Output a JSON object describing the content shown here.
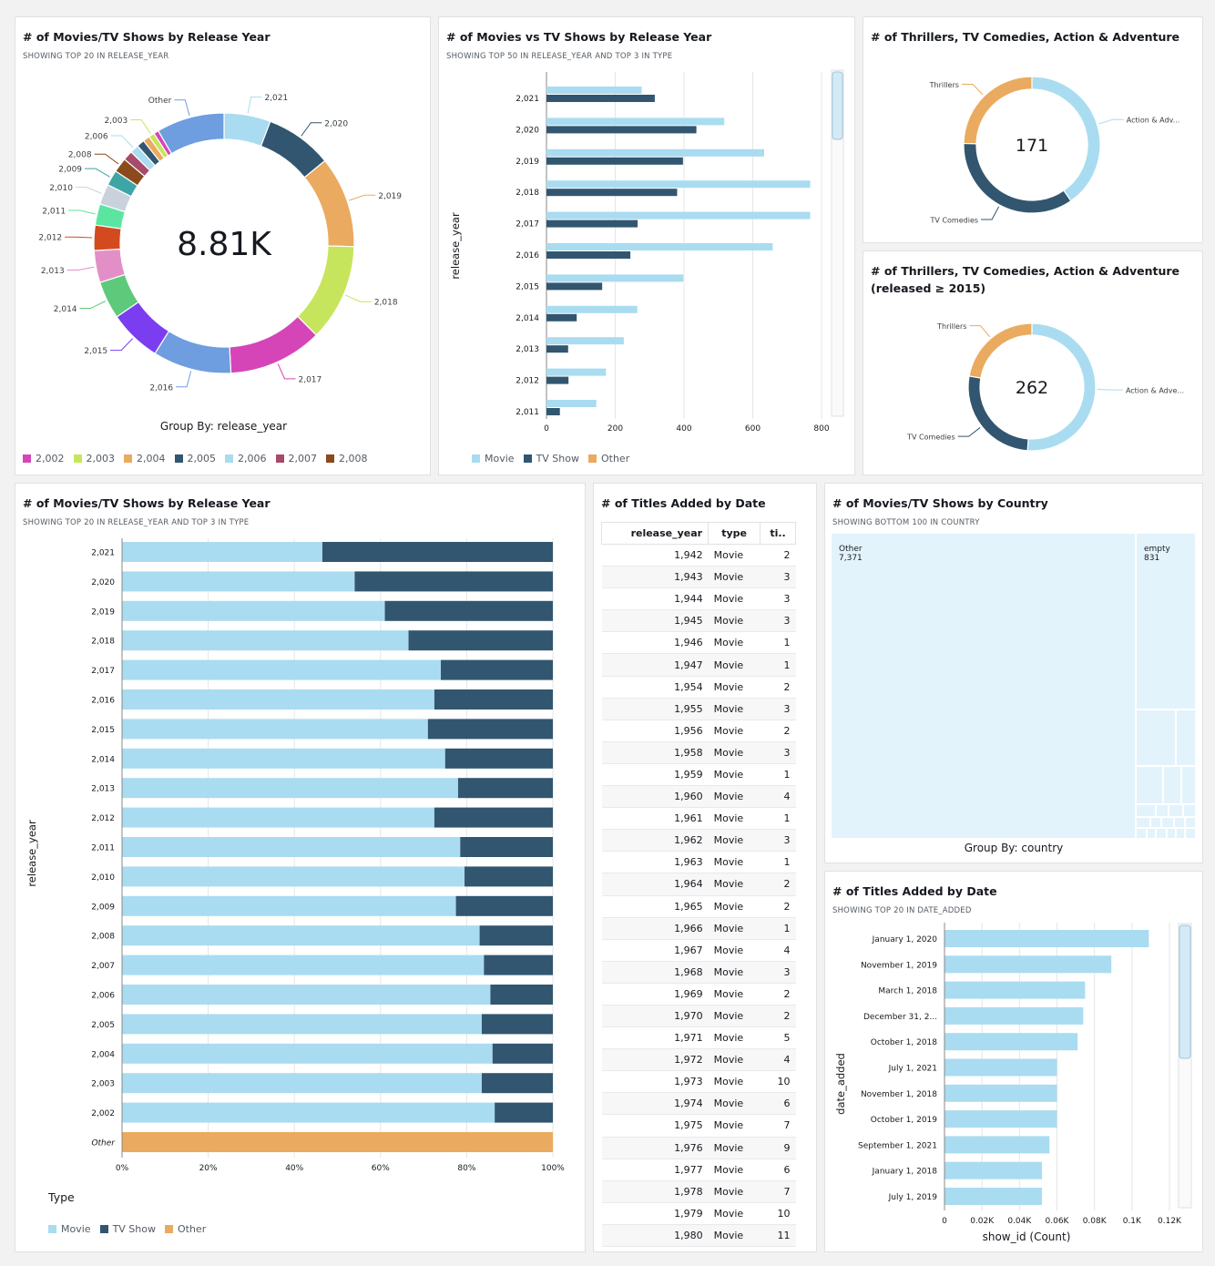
{
  "panels": {
    "p1": {
      "title": "# of Movies/TV Shows by Release Year",
      "subtitle": "SHOWING TOP 20 IN RELEASE_YEAR",
      "center": "8.81K",
      "groupby": "Group By: release_year"
    },
    "p2": {
      "title": "# of Movies vs TV Shows by Release Year",
      "subtitle": "SHOWING TOP 50 IN RELEASE_YEAR AND TOP 3 IN TYPE"
    },
    "p3": {
      "title": "# of Thrillers, TV Comedies, Action & Adventure",
      "center": "171"
    },
    "p4": {
      "title_line1": "# of Thrillers, TV Comedies, Action & Adventure",
      "title_line2": "(released ≥ 2015)",
      "center": "262"
    },
    "p5": {
      "title": "# of Movies/TV Shows by Release Year",
      "subtitle": "SHOWING TOP 20 IN RELEASE_YEAR AND TOP 3 IN TYPE",
      "legend_title": "Type"
    },
    "p6": {
      "title": "# of Titles Added by Date"
    },
    "p7": {
      "title": "# of Movies/TV Shows by Country",
      "subtitle": "SHOWING BOTTOM 100 IN COUNTRY",
      "groupby": "Group By: country"
    },
    "p8": {
      "title": "# of Titles Added by Date",
      "subtitle": "SHOWING TOP 20 IN DATE_ADDED"
    }
  },
  "colors": {
    "movie": "#a9dcf0",
    "tvshow": "#32566f",
    "other": "#eaaa5f"
  },
  "chart_data": [
    {
      "type": "pie",
      "id": "donut-release-year",
      "slices": [
        {
          "label": "2,021",
          "value": 4.8,
          "color": "#a9dcf0"
        },
        {
          "label": "2,020",
          "value": 6.9,
          "color": "#32566f"
        },
        {
          "label": "2,019",
          "value": 9.4,
          "color": "#eaaa5f"
        },
        {
          "label": "2,018",
          "value": 10.0,
          "color": "#c7e55c"
        },
        {
          "label": "2,017",
          "value": 9.7,
          "color": "#d545b8"
        },
        {
          "label": "2,016",
          "value": 8.1,
          "color": "#6e9de0"
        },
        {
          "label": "2,015",
          "value": 5.4,
          "color": "#7a3ef0"
        },
        {
          "label": "2,014",
          "value": 3.9,
          "color": "#5ec97a"
        },
        {
          "label": "2,013",
          "value": 3.3,
          "color": "#e38fc7"
        },
        {
          "label": "2,012",
          "value": 2.6,
          "color": "#d44a1f"
        },
        {
          "label": "2,011",
          "value": 2.2,
          "color": "#5ae6a1"
        },
        {
          "label": "2,010",
          "value": 2.1,
          "color": "#c9d2dc"
        },
        {
          "label": "2,009",
          "value": 1.6,
          "color": "#3ea5a6"
        },
        {
          "label": "2,008",
          "value": 1.5,
          "color": "#8a4a1c"
        },
        {
          "label": "",
          "value": 1.0,
          "color": "#a84a6a"
        },
        {
          "label": "2,006",
          "value": 0.9,
          "color": "#a9dcf0"
        },
        {
          "label": "",
          "value": 0.8,
          "color": "#32566f"
        },
        {
          "label": "",
          "value": 0.7,
          "color": "#eaaa5f"
        },
        {
          "label": "2,003",
          "value": 0.6,
          "color": "#c7e55c"
        },
        {
          "label": "",
          "value": 0.5,
          "color": "#d545b8"
        },
        {
          "label": "Other",
          "value": 7.0,
          "color": "#6e9de0"
        }
      ],
      "legend": [
        {
          "label": "2,002",
          "color": "#d545b8"
        },
        {
          "label": "2,003",
          "color": "#c7e55c"
        },
        {
          "label": "2,004",
          "color": "#eaaa5f"
        },
        {
          "label": "2,005",
          "color": "#32566f"
        },
        {
          "label": "2,006",
          "color": "#a9dcf0"
        },
        {
          "label": "2,007",
          "color": "#a84a6a"
        },
        {
          "label": "2,008",
          "color": "#8a4a1c"
        }
      ]
    },
    {
      "type": "bar",
      "id": "movies-vs-tv",
      "orientation": "horizontal",
      "categories": [
        "2,021",
        "2,020",
        "2,019",
        "2,018",
        "2,017",
        "2,016",
        "2,015",
        "2,014",
        "2,013",
        "2,012",
        "2,011"
      ],
      "series": [
        {
          "name": "Movie",
          "values": [
            277,
            517,
            633,
            767,
            767,
            658,
            398,
            264,
            225,
            173,
            145
          ]
        },
        {
          "name": "TV Show",
          "values": [
            315,
            436,
            397,
            380,
            265,
            244,
            162,
            88,
            63,
            64,
            39
          ]
        }
      ],
      "legend": [
        "Movie",
        "TV Show",
        "Other"
      ],
      "ylabel": "release_year",
      "xticks": [
        "0",
        "200",
        "400",
        "600",
        "800"
      ],
      "xlim": [
        0,
        800
      ]
    },
    {
      "type": "pie",
      "id": "genres-donut",
      "slices": [
        {
          "label": "Action & Adv...",
          "value": 121,
          "color": "#a9dcf0"
        },
        {
          "label": "TV Comedies",
          "value": 105,
          "color": "#32566f"
        },
        {
          "label": "Thrillers",
          "value": 74,
          "color": "#eaaa5f"
        }
      ]
    },
    {
      "type": "pie",
      "id": "genres-donut-2015",
      "slices": [
        {
          "label": "Action & Adve...",
          "value": 184,
          "color": "#a9dcf0"
        },
        {
          "label": "TV Comedies",
          "value": 96,
          "color": "#32566f"
        },
        {
          "label": "Thrillers",
          "value": 80,
          "color": "#eaaa5f"
        }
      ]
    },
    {
      "type": "bar",
      "id": "stacked-percent",
      "orientation": "horizontal",
      "stacked": "percent",
      "categories": [
        "2,021",
        "2,020",
        "2,019",
        "2,018",
        "2,017",
        "2,016",
        "2,015",
        "2,014",
        "2,013",
        "2,012",
        "2,011",
        "2,010",
        "2,009",
        "2,008",
        "2,007",
        "2,006",
        "2,005",
        "2,004",
        "2,003",
        "2,002",
        "Other"
      ],
      "series": [
        {
          "name": "Movie",
          "values": [
            46.5,
            54,
            61,
            66.5,
            74,
            72.5,
            71,
            75,
            78,
            72.5,
            78.5,
            79.5,
            77.5,
            83,
            84,
            85.5,
            83.5,
            86,
            83.5,
            86.5,
            0
          ]
        },
        {
          "name": "TV Show",
          "values": [
            53.5,
            46,
            39,
            33.5,
            26,
            27.5,
            29,
            25,
            22,
            27.5,
            21.5,
            20.5,
            22.5,
            17,
            16,
            14.5,
            16.5,
            14,
            16.5,
            13.5,
            0
          ]
        },
        {
          "name": "Other",
          "values": [
            0,
            0,
            0,
            0,
            0,
            0,
            0,
            0,
            0,
            0,
            0,
            0,
            0,
            0,
            0,
            0,
            0,
            0,
            0,
            0,
            100
          ]
        }
      ],
      "legend": [
        "Movie",
        "TV Show",
        "Other"
      ],
      "ylabel": "release_year",
      "xticks": [
        "0%",
        "20%",
        "40%",
        "60%",
        "80%",
        "100%"
      ]
    },
    {
      "type": "table",
      "id": "titles-table",
      "columns": [
        "release_year",
        "type",
        "ti.."
      ],
      "rows": [
        [
          "1,942",
          "Movie",
          "2"
        ],
        [
          "1,943",
          "Movie",
          "3"
        ],
        [
          "1,944",
          "Movie",
          "3"
        ],
        [
          "1,945",
          "Movie",
          "3"
        ],
        [
          "1,946",
          "Movie",
          "1"
        ],
        [
          "1,947",
          "Movie",
          "1"
        ],
        [
          "1,954",
          "Movie",
          "2"
        ],
        [
          "1,955",
          "Movie",
          "3"
        ],
        [
          "1,956",
          "Movie",
          "2"
        ],
        [
          "1,958",
          "Movie",
          "3"
        ],
        [
          "1,959",
          "Movie",
          "1"
        ],
        [
          "1,960",
          "Movie",
          "4"
        ],
        [
          "1,961",
          "Movie",
          "1"
        ],
        [
          "1,962",
          "Movie",
          "3"
        ],
        [
          "1,963",
          "Movie",
          "1"
        ],
        [
          "1,964",
          "Movie",
          "2"
        ],
        [
          "1,965",
          "Movie",
          "2"
        ],
        [
          "1,966",
          "Movie",
          "1"
        ],
        [
          "1,967",
          "Movie",
          "4"
        ],
        [
          "1,968",
          "Movie",
          "3"
        ],
        [
          "1,969",
          "Movie",
          "2"
        ],
        [
          "1,970",
          "Movie",
          "2"
        ],
        [
          "1,971",
          "Movie",
          "5"
        ],
        [
          "1,972",
          "Movie",
          "4"
        ],
        [
          "1,973",
          "Movie",
          "10"
        ],
        [
          "1,974",
          "Movie",
          "6"
        ],
        [
          "1,975",
          "Movie",
          "7"
        ],
        [
          "1,976",
          "Movie",
          "9"
        ],
        [
          "1,977",
          "Movie",
          "6"
        ],
        [
          "1,978",
          "Movie",
          "7"
        ],
        [
          "1,979",
          "Movie",
          "10"
        ],
        [
          "1,980",
          "Movie",
          "11"
        ]
      ]
    },
    {
      "type": "heatmap",
      "id": "country-treemap",
      "cells": [
        {
          "label": "Other",
          "value": "7,371"
        },
        {
          "label": "empty",
          "value": "831"
        }
      ]
    },
    {
      "type": "bar",
      "id": "titles-by-date",
      "orientation": "horizontal",
      "categories": [
        "January 1, 2020",
        "November 1, 2019",
        "March 1, 2018",
        "December 31, 2...",
        "October 1, 2018",
        "July 1, 2021",
        "November 1, 2018",
        "October 1, 2019",
        "September 1, 2021",
        "January 1, 2018",
        "July 1, 2019"
      ],
      "values": [
        109,
        89,
        75,
        74,
        71,
        60,
        60,
        60,
        56,
        52,
        52
      ],
      "ylabel": "date_added",
      "xlabel": "show_id (Count)",
      "xticks": [
        "0",
        "0.02K",
        "0.04K",
        "0.06K",
        "0.08K",
        "0.1K",
        "0.12K"
      ],
      "xlim": [
        0,
        120
      ]
    }
  ]
}
